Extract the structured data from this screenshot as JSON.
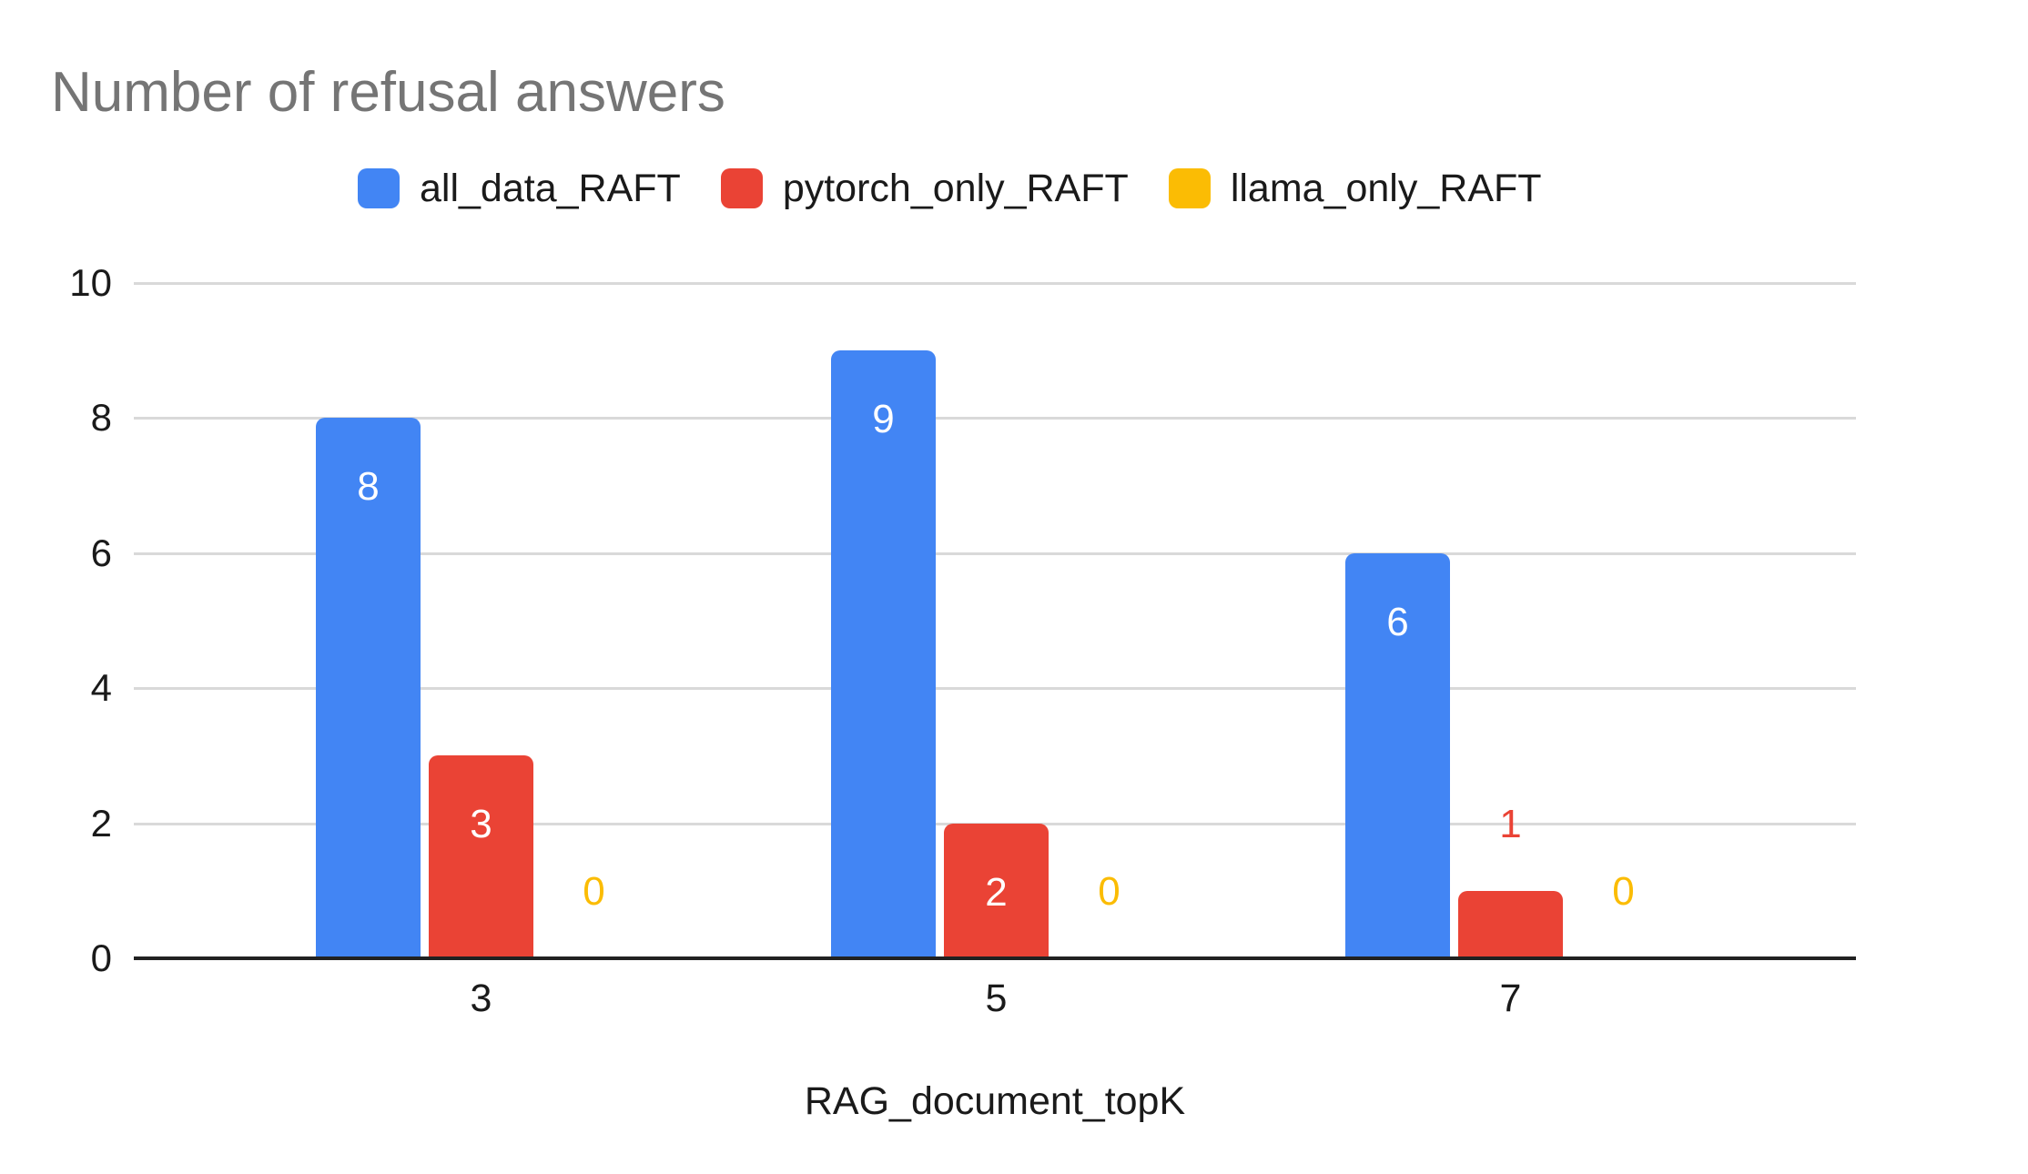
{
  "page": {
    "background": "#ffffff"
  },
  "chart_data": {
    "type": "bar",
    "title": "Number of refusal answers",
    "title_color": "#757575",
    "xlabel": "RAG_document_topK",
    "ylabel": "",
    "categories": [
      "3",
      "5",
      "7"
    ],
    "series": [
      {
        "name": "all_data_RAFT",
        "color": "#4285F4",
        "values": [
          8,
          9,
          6
        ]
      },
      {
        "name": "pytorch_only_RAFT",
        "color": "#EA4335",
        "values": [
          3,
          2,
          1
        ]
      },
      {
        "name": "llama_only_RAFT",
        "color": "#FBBC04",
        "values": [
          0,
          0,
          0
        ]
      }
    ],
    "y_ticks": [
      0,
      2,
      4,
      6,
      8,
      10
    ],
    "ylim": [
      0,
      10
    ],
    "grid": true,
    "legend_position": "top",
    "data_labels": true,
    "data_label_inside_color": "#ffffff",
    "text_color": "#1a1a1a",
    "gridline_color": "#d9d9d9",
    "axis_line_color": "#212121"
  }
}
